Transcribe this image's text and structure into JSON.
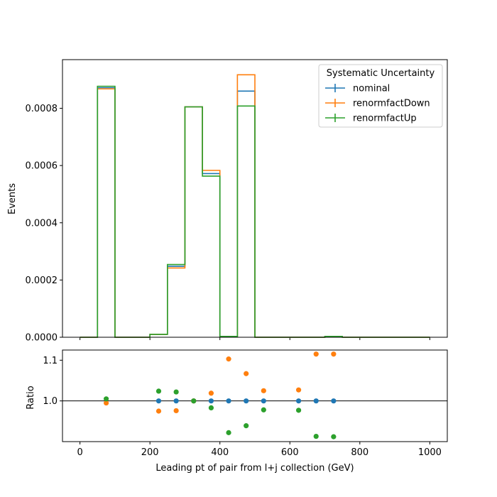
{
  "chart_data": [
    {
      "type": "histogram",
      "ylabel": "Events",
      "xlim": [
        -50,
        1050
      ],
      "ylim": [
        0,
        0.00097
      ],
      "yticks": [
        "0.0000",
        "0.0002",
        "0.0004",
        "0.0006",
        "0.0008"
      ],
      "bin_edges": [
        0,
        50,
        100,
        150,
        200,
        250,
        300,
        350,
        400,
        450,
        500,
        550,
        600,
        650,
        700,
        750,
        800,
        850,
        900,
        950,
        1000
      ],
      "legend_title": "Systematic Uncertainty",
      "legend_position": "top-right",
      "series": [
        {
          "name": "nominal",
          "color": "#1f77b4",
          "values": [
            0,
            0.000872,
            0,
            0,
            1e-05,
            0.000248,
            0.000805,
            0.000572,
            3e-06,
            0.00086,
            0,
            0,
            0,
            0,
            3e-06,
            0,
            0,
            0,
            0,
            0
          ]
        },
        {
          "name": "renormfactDown",
          "color": "#ff7f0e",
          "values": [
            0,
            0.000868,
            0,
            0,
            1e-05,
            0.000242,
            0.000805,
            0.000583,
            3e-06,
            0.000917,
            0,
            0,
            0,
            0,
            3e-06,
            0,
            0,
            0,
            0,
            0
          ]
        },
        {
          "name": "renormfactUp",
          "color": "#2ca02c",
          "values": [
            0,
            0.000877,
            0,
            0,
            1e-05,
            0.000254,
            0.000805,
            0.000563,
            3e-06,
            0.000808,
            0,
            0,
            0,
            0,
            3e-06,
            0,
            0,
            0,
            0,
            0
          ]
        }
      ]
    },
    {
      "type": "scatter",
      "xlabel": "Leading pt of pair from l+j collection (GeV)",
      "ylabel": "Ratio",
      "xlim": [
        -50,
        1050
      ],
      "ylim": [
        0.9,
        1.125
      ],
      "xticks": [
        "0",
        "200",
        "400",
        "600",
        "800",
        "1000"
      ],
      "yticks": [
        "1.0",
        "1.1"
      ],
      "reference_line": 1.0,
      "series": [
        {
          "name": "nominal",
          "color": "#1f77b4",
          "x": [
            225,
            275,
            325,
            375,
            425,
            475,
            525,
            625,
            675,
            725
          ],
          "y": [
            1.0,
            1.0,
            1.0,
            1.0,
            1.0,
            1.0,
            1.0,
            1.0,
            1.0,
            1.0
          ]
        },
        {
          "name": "renormfactDown",
          "color": "#ff7f0e",
          "x": [
            75,
            225,
            275,
            325,
            375,
            425,
            475,
            525,
            625,
            675,
            725
          ],
          "y": [
            0.995,
            0.975,
            0.976,
            1.0,
            1.019,
            1.103,
            1.067,
            1.025,
            1.027,
            1.115,
            1.115
          ]
        },
        {
          "name": "renormfactUp",
          "color": "#2ca02c",
          "x": [
            75,
            225,
            275,
            325,
            375,
            425,
            475,
            525,
            625,
            675,
            725
          ],
          "y": [
            1.005,
            1.024,
            1.022,
            1.0,
            0.983,
            0.922,
            0.939,
            0.978,
            0.977,
            0.913,
            0.912
          ]
        }
      ]
    }
  ]
}
